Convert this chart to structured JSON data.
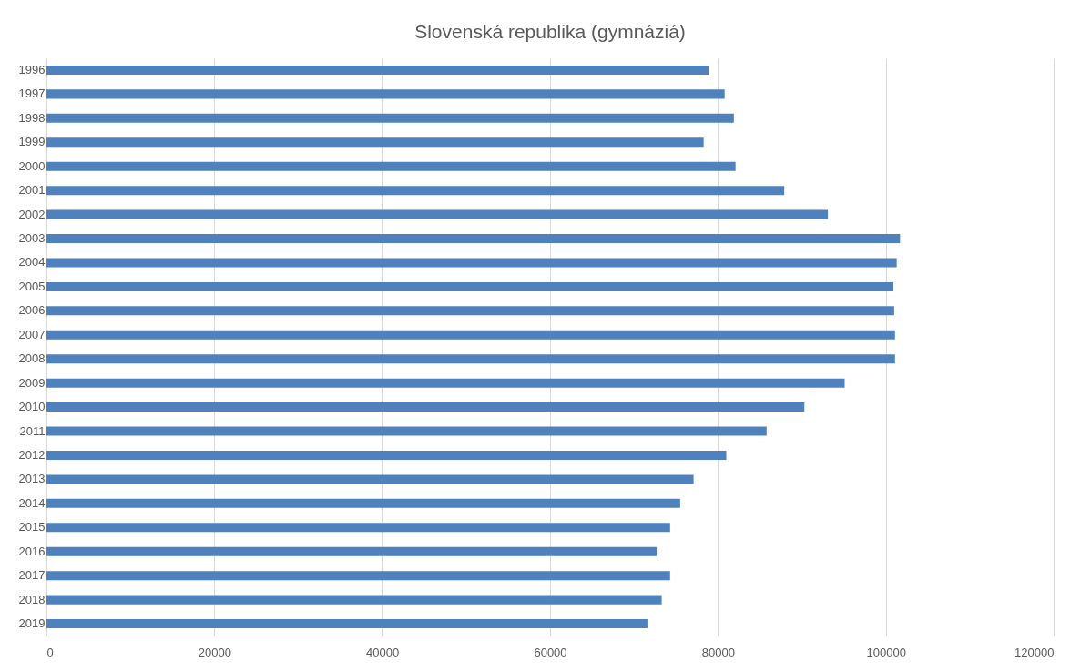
{
  "chart_data": {
    "type": "bar",
    "orientation": "horizontal",
    "title": "Slovenská republika (gymnáziá)",
    "categories": [
      "1996",
      "1997",
      "1998",
      "1999",
      "2000",
      "2001",
      "2002",
      "2003",
      "2004",
      "2005",
      "2006",
      "2007",
      "2008",
      "2009",
      "2010",
      "2011",
      "2012",
      "2013",
      "2014",
      "2015",
      "2016",
      "2017",
      "2018",
      "2019"
    ],
    "values": [
      78900,
      80800,
      81900,
      78300,
      82100,
      87900,
      93100,
      101700,
      101300,
      100900,
      101000,
      101100,
      101100,
      95100,
      90300,
      85800,
      81000,
      77100,
      75500,
      74300,
      72700,
      74300,
      73300,
      71600
    ],
    "color": "#4f81bd",
    "xlim": [
      0,
      120000
    ],
    "xticks": [
      0,
      20000,
      40000,
      60000,
      80000,
      100000,
      120000
    ],
    "grid": "x"
  }
}
